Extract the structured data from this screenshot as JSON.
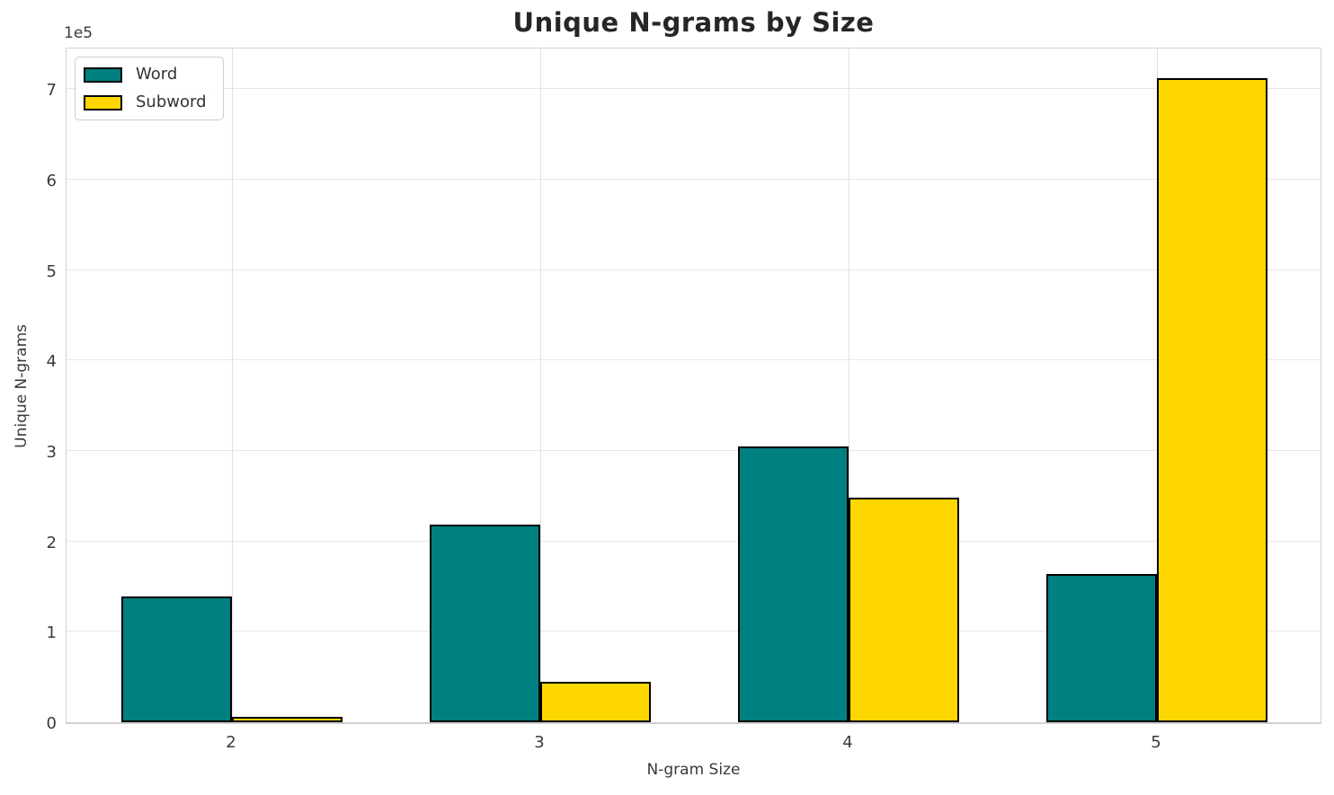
{
  "chart_data": {
    "type": "bar",
    "title": "Unique N-grams by Size",
    "xlabel": "N-gram Size",
    "ylabel": "Unique N-grams",
    "y_offset_text": "1e5",
    "categories": [
      "2",
      "3",
      "4",
      "5"
    ],
    "series": [
      {
        "name": "Word",
        "color": "#008080",
        "values": [
          139000,
          219000,
          305000,
          164000
        ]
      },
      {
        "name": "Subword",
        "color": "#FFD700",
        "values": [
          6000,
          45000,
          248000,
          712000
        ]
      }
    ],
    "bar_edge_color": "#000000",
    "ylim": [
      0,
      748000
    ],
    "yticks": [
      0,
      100000,
      200000,
      300000,
      400000,
      500000,
      600000,
      700000
    ],
    "ytick_labels": [
      "0",
      "1",
      "2",
      "3",
      "4",
      "5",
      "6",
      "7"
    ],
    "grid": true,
    "legend_position": "upper left"
  },
  "colors": {
    "grid": "#e7e7e7",
    "spine": "#d3d3d3",
    "tick_text": "#3a3a3a",
    "title_text": "#262626"
  }
}
